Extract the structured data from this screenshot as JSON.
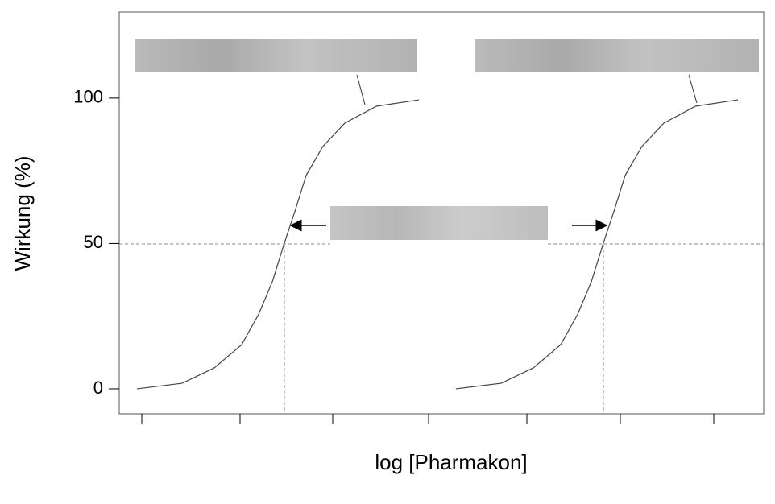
{
  "chart_data": {
    "type": "line",
    "y_label": "Wirkung (%)",
    "x_label": "log [Pharmakon]",
    "ylim": [
      -8.6,
      129.6
    ],
    "yticks": [
      0,
      50,
      100
    ],
    "xlim": [
      0,
      100
    ],
    "color": "#444444",
    "series": [
      {
        "x": [
          2.75,
          9.75,
          14.75,
          19,
          21.6,
          23.75,
          25.6,
          27.25,
          29,
          31.6,
          35,
          39.9,
          46.5
        ],
        "values": [
          0,
          1.9,
          7.2,
          15.2,
          25.5,
          36.8,
          50,
          61,
          73.4,
          83.4,
          91.4,
          97.2,
          99.4
        ]
      },
      {
        "x": [
          52.25,
          59.25,
          64.25,
          68.5,
          71.1,
          73.25,
          75.1,
          76.75,
          78.5,
          81.1,
          84.5,
          89.4,
          96
        ],
        "values": [
          0,
          1.9,
          7.2,
          15.2,
          25.5,
          36.8,
          50,
          61,
          73.4,
          83.4,
          91.4,
          97.2,
          99.4
        ]
      }
    ]
  }
}
